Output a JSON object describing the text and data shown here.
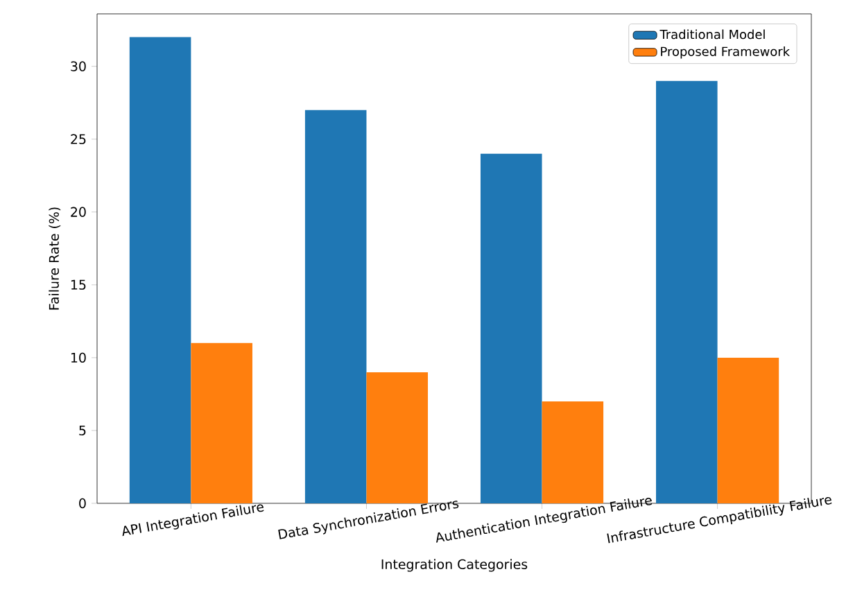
{
  "chart_data": {
    "type": "bar",
    "xlabel": "Integration Categories",
    "ylabel": "Failure Rate (%)",
    "categories": [
      "API Integration Failure",
      "Data Synchronization Errors",
      "Authentication Integration Failure",
      "Infrastructure Compatibility Failure"
    ],
    "series": [
      {
        "name": "Traditional Model",
        "color": "#1f77b4",
        "values": [
          32,
          27,
          24,
          29
        ]
      },
      {
        "name": "Proposed Framework",
        "color": "#ff7f0e",
        "values": [
          11,
          9,
          7,
          10
        ]
      }
    ],
    "ylim": [
      0,
      33.6
    ],
    "yticks": [
      0,
      5,
      10,
      15,
      20,
      25,
      30
    ],
    "legend": "top right"
  }
}
